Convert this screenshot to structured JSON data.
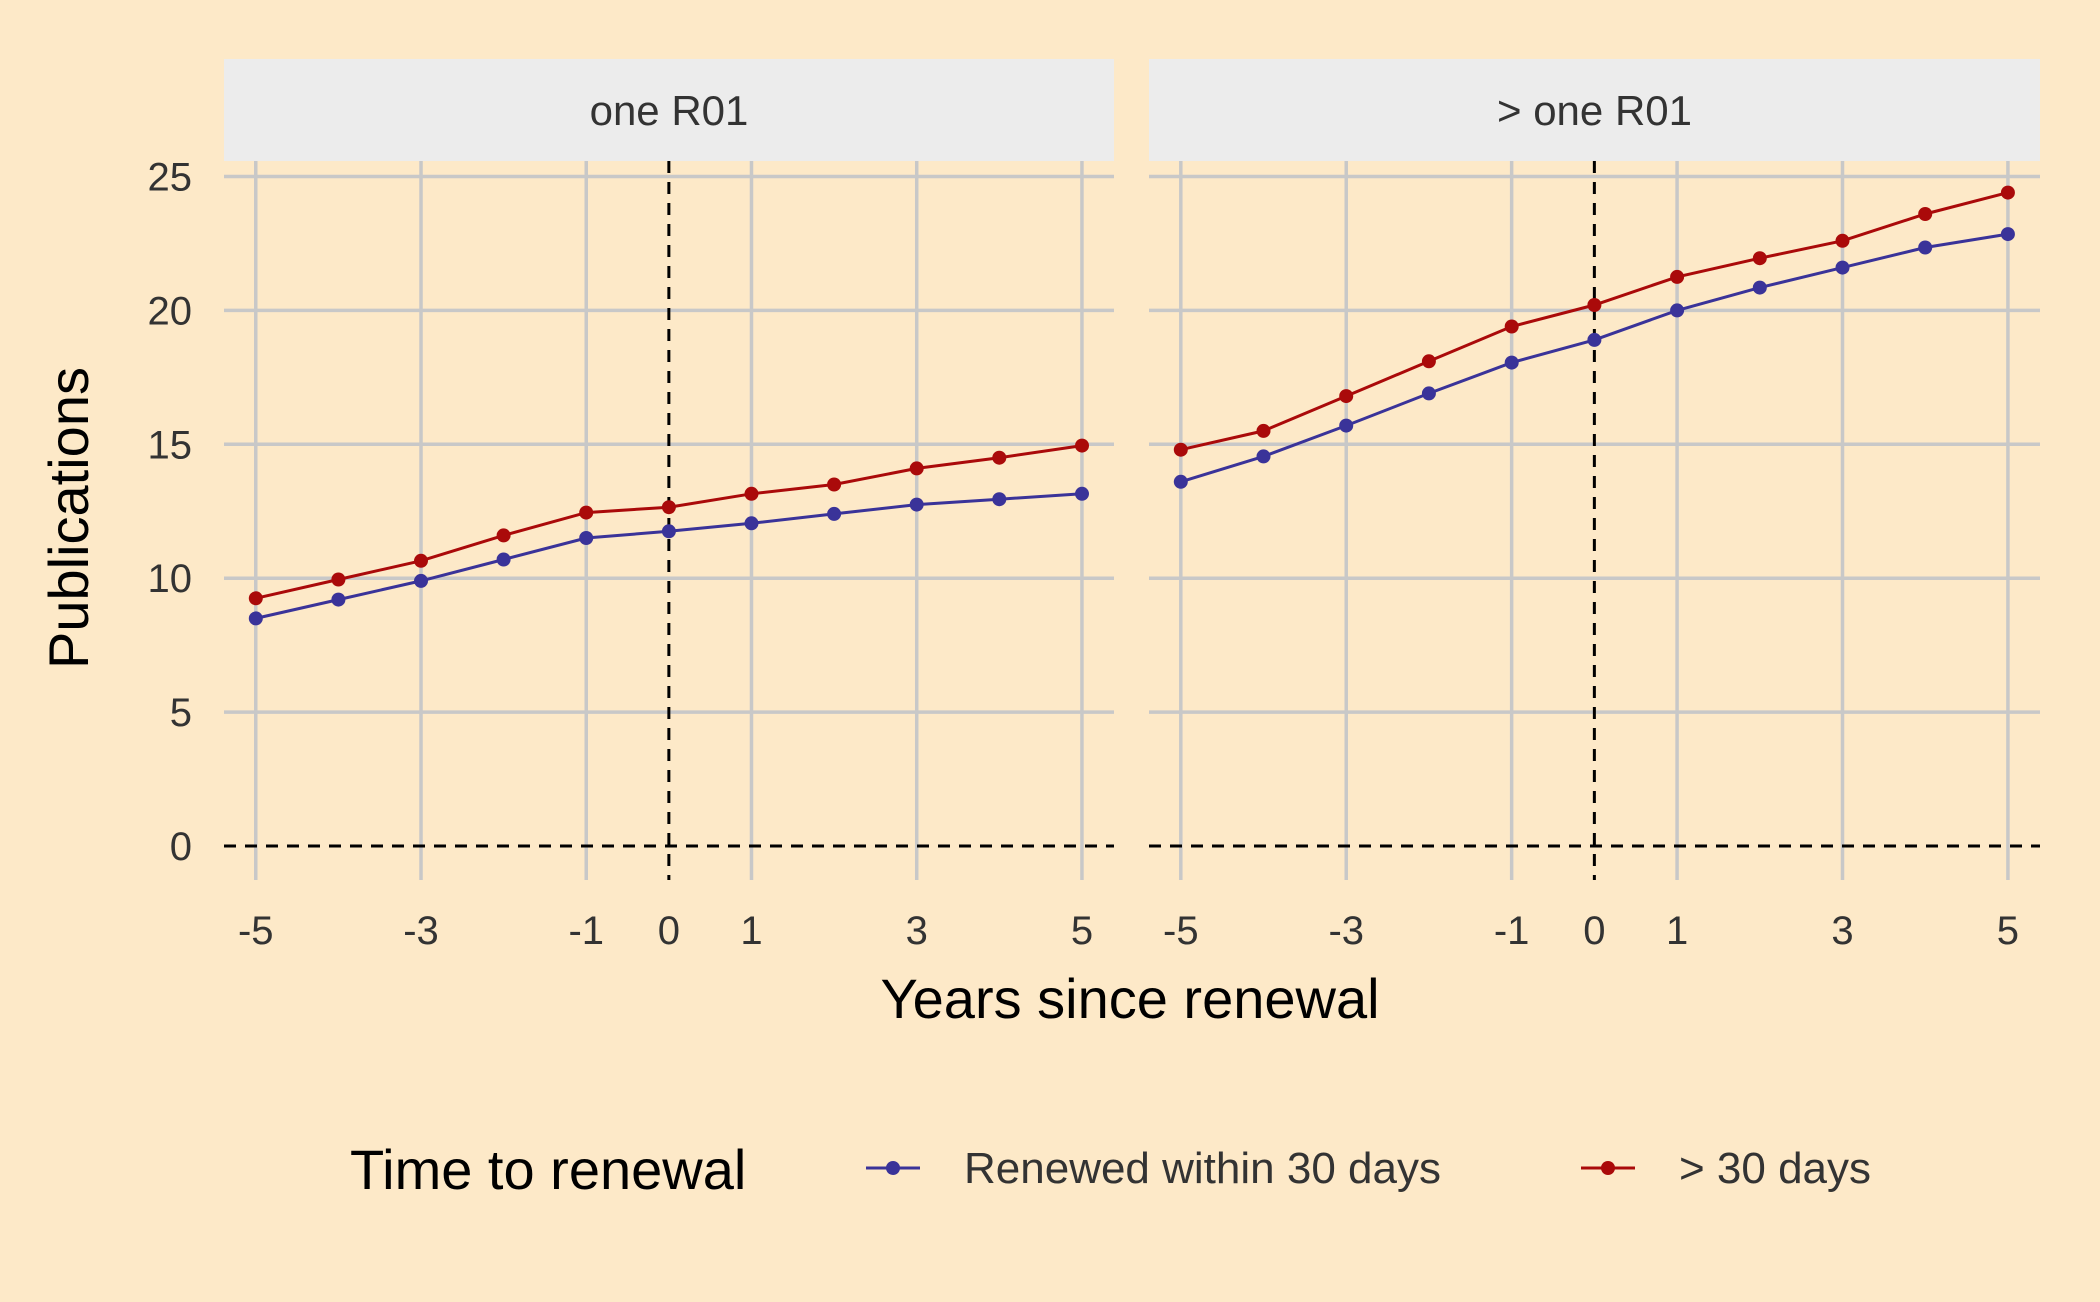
{
  "colors": {
    "background": "#fde9c8",
    "strip_background": "#ececec",
    "grid": "#c8c8c8",
    "reference_line": "#000000",
    "series_within_30": "#3a3399",
    "series_over_30": "#aa0a0a"
  },
  "chart_data": {
    "type": "line",
    "facet_by": [
      "one R01",
      "> one R01"
    ],
    "xlabel": "Years since renewal",
    "ylabel": "Publications",
    "x_ticks": [
      -5,
      -3,
      -1,
      0,
      1,
      3,
      5
    ],
    "y_ticks": [
      0,
      5,
      10,
      15,
      20,
      25
    ],
    "xlim": [
      -5.5,
      5.5
    ],
    "ylim": [
      0,
      25
    ],
    "grid": true,
    "reference_lines": {
      "x": 0,
      "y": 0,
      "style": "dashed"
    },
    "legend": {
      "title": "Time to renewal",
      "position": "bottom",
      "entries": [
        "Renewed within 30 days",
        "> 30 days"
      ]
    },
    "x": [
      -5,
      -4,
      -3,
      -2,
      -1,
      0,
      1,
      2,
      3,
      4,
      5
    ],
    "panels": [
      {
        "label": "one R01",
        "series": [
          {
            "name": "Renewed within 30 days",
            "color": "#3a3399",
            "values": [
              8.5,
              9.2,
              9.9,
              10.7,
              11.5,
              11.75,
              12.05,
              12.4,
              12.75,
              12.95,
              13.15
            ]
          },
          {
            "name": "> 30 days",
            "color": "#aa0a0a",
            "values": [
              9.25,
              9.95,
              10.65,
              11.6,
              12.45,
              12.65,
              13.15,
              13.5,
              14.1,
              14.5,
              14.95
            ]
          }
        ]
      },
      {
        "label": "> one R01",
        "series": [
          {
            "name": "Renewed within 30 days",
            "color": "#3a3399",
            "values": [
              13.6,
              14.55,
              15.7,
              16.9,
              18.05,
              18.9,
              20.0,
              20.85,
              21.6,
              22.35,
              22.85
            ]
          },
          {
            "name": "> 30 days",
            "color": "#aa0a0a",
            "values": [
              14.8,
              15.5,
              16.8,
              18.1,
              19.4,
              20.2,
              21.25,
              21.95,
              22.6,
              23.6,
              24.4
            ]
          }
        ]
      }
    ]
  }
}
